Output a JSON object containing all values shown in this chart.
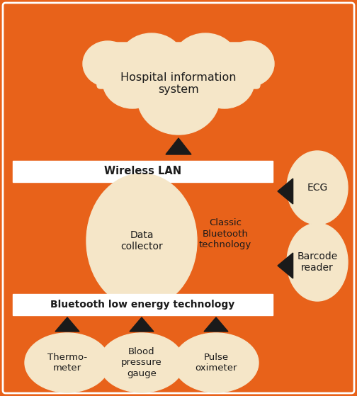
{
  "bg_color": "#E8621A",
  "cream_color": "#F5E6C8",
  "white_color": "#FFFFFF",
  "dark_color": "#1A1A1A",
  "fig_width": 5.04,
  "fig_height": 5.59,
  "cloud_text": "Hospital information\nsystem",
  "wlan_text": "Wireless LAN",
  "ble_text": "Bluetooth low energy technology",
  "data_collector_text": "Data\ncollector",
  "classic_bt_text": "Classic\nBluetooth\ntechnology",
  "ecg_text": "ECG",
  "barcode_text": "Barcode\nreader",
  "thermo_text": "Thermo-\nmeter",
  "bp_text": "Blood\npressure\ngauge",
  "pulse_text": "Pulse\noximeter"
}
